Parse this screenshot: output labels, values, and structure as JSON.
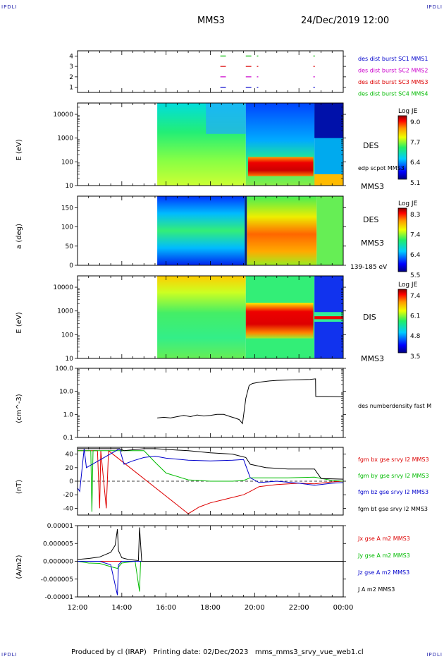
{
  "corner_labels": {
    "top_left": "IPDLI",
    "top_right": "IPDLI",
    "bottom_left": "IPDLI",
    "bottom_right": "IPDLI"
  },
  "header": {
    "spacecraft": "MMS3",
    "date": "24/Dec/2019 12:00"
  },
  "footer": {
    "produced_by": "Produced by cl (IRAP)",
    "printing_date": "Printing date: 02/Dec/2023",
    "file": "mms_mms3_srvy_vue_web1.cl"
  },
  "x_axis": {
    "tick_labels": [
      "12:00",
      "14:00",
      "16:00",
      "18:00",
      "20:00",
      "22:00",
      "00:00"
    ],
    "range_hours": [
      12,
      24
    ]
  },
  "colors": {
    "blue": "#0000cc",
    "magenta": "#cc00cc",
    "red": "#dd0000",
    "green": "#00bb00",
    "black": "#000000"
  },
  "chart_data": [
    {
      "type": "scatter",
      "id": "burst",
      "ylim": [
        0.5,
        4.5
      ],
      "tick_labels": [
        "1",
        "2",
        "3",
        "4"
      ],
      "legend": [
        {
          "label": "des dist burst SC1 MMS1",
          "color": "#0000cc",
          "y": 1
        },
        {
          "label": "des dist burst SC2 MMS2",
          "color": "#cc00cc",
          "y": 2
        },
        {
          "label": "des dist burst SC3 MMS3",
          "color": "#dd0000",
          "y": 3
        },
        {
          "label": "des dist burst SC4 MMS4",
          "color": "#00bb00",
          "y": 4
        }
      ],
      "intervals_hours": [
        [
          18.45,
          18.7
        ],
        [
          19.6,
          19.85
        ],
        [
          20.1,
          20.15
        ],
        [
          22.65,
          22.72
        ]
      ]
    },
    {
      "type": "heatmap",
      "id": "des_energy",
      "ylabel": "E (eV)",
      "scale": "log",
      "ylim": [
        10,
        30000
      ],
      "tick_labels": [
        "10",
        "100",
        "1000",
        "10000"
      ],
      "side_labels": [
        "DES",
        "MMS3"
      ],
      "overlay_label": "edp scpot MMS3",
      "colorbar": {
        "title": "Log JE",
        "ticks": [
          "9.0",
          "7.7",
          "6.4",
          "5.1"
        ],
        "range": [
          5.1,
          9.0
        ]
      },
      "data_start_hours": 15.6
    },
    {
      "type": "heatmap",
      "id": "des_pitch",
      "ylabel": "a (deg)",
      "ylim": [
        0,
        180
      ],
      "tick_labels": [
        "0",
        "50",
        "100",
        "150"
      ],
      "side_labels": [
        "DES",
        "MMS3",
        "139-185 eV"
      ],
      "colorbar": {
        "title": "Log JE",
        "ticks": [
          "8.3",
          "7.4",
          "6.4",
          "5.5"
        ],
        "range": [
          5.5,
          8.3
        ]
      },
      "data_start_hours": 15.6
    },
    {
      "type": "heatmap",
      "id": "dis_energy",
      "ylabel": "E (eV)",
      "scale": "log",
      "ylim": [
        10,
        30000
      ],
      "tick_labels": [
        "10",
        "100",
        "1000",
        "10000"
      ],
      "side_labels": [
        "DIS",
        "MMS3"
      ],
      "colorbar": {
        "title": "Log JE",
        "ticks": [
          "7.4",
          "6.1",
          "4.8",
          "3.5"
        ],
        "range": [
          3.5,
          7.4
        ]
      },
      "data_start_hours": 15.6
    },
    {
      "type": "line",
      "id": "density",
      "ylabel": "(cm^-3)",
      "scale": "log",
      "ylim": [
        0.1,
        100
      ],
      "tick_labels": [
        "0.1",
        "1.0",
        "10.0",
        "100.0"
      ],
      "series": [
        {
          "name": "des numberdensity fast M",
          "color": "#000000",
          "x": [
            15.6,
            15.9,
            16.2,
            16.5,
            16.8,
            17.1,
            17.4,
            17.7,
            18.0,
            18.3,
            18.6,
            18.9,
            19.1,
            19.3,
            19.45,
            19.6,
            19.75,
            19.9,
            20.2,
            20.6,
            21.0,
            21.5,
            22.0,
            22.5,
            22.75,
            22.76,
            23.2,
            24.0
          ],
          "y": [
            0.7,
            0.75,
            0.7,
            0.8,
            0.9,
            0.8,
            0.95,
            0.85,
            0.9,
            1.0,
            1.0,
            0.8,
            0.7,
            0.6,
            0.4,
            5,
            18,
            22,
            25,
            28,
            30,
            31,
            32,
            33,
            35,
            6,
            6,
            5.8
          ]
        }
      ]
    },
    {
      "type": "line",
      "id": "fgm",
      "ylabel": "(nT)",
      "ylim": [
        -50,
        50
      ],
      "tick_labels": [
        "-40",
        "-20",
        "0",
        "20",
        "40"
      ],
      "series": [
        {
          "name": "fgm bx gse srvy l2 MMS3",
          "color": "#dd0000",
          "x": [
            12.0,
            12.9,
            13.0,
            13.05,
            13.3,
            13.4,
            17.0,
            17.5,
            18.0,
            18.5,
            19.0,
            19.5,
            19.8,
            20.2,
            21.0,
            22.0,
            22.7,
            23.5,
            24.0
          ],
          "y": [
            45,
            45,
            -40,
            45,
            -40,
            45,
            -48,
            -38,
            -32,
            -28,
            -24,
            -20,
            -15,
            -8,
            -5,
            -3,
            -4,
            -1,
            0
          ]
        },
        {
          "name": "fgm by gse srvy l2 MMS3",
          "color": "#00bb00",
          "x": [
            12.0,
            12.6,
            12.65,
            12.7,
            15.0,
            15.5,
            16.0,
            17.0,
            18.0,
            19.0,
            19.5,
            19.8,
            20.5,
            21.5,
            22.7,
            23.5,
            24.0
          ],
          "y": [
            45,
            45,
            -45,
            45,
            45,
            28,
            12,
            2,
            0,
            0,
            1,
            5,
            5,
            5,
            6,
            1,
            0
          ]
        },
        {
          "name": "fgm bz gse srvy l2 MMS3",
          "color": "#0000cc",
          "x": [
            12.0,
            12.1,
            12.3,
            12.4,
            13.9,
            14.1,
            14.5,
            15.0,
            15.5,
            16.0,
            17.0,
            18.0,
            19.0,
            19.5,
            19.8,
            20.2,
            21.0,
            22.0,
            22.7,
            23.5,
            24.0
          ],
          "y": [
            -10,
            -15,
            48,
            20,
            48,
            25,
            30,
            35,
            37,
            34,
            31,
            30,
            31,
            32,
            5,
            -2,
            0,
            -3,
            -6,
            -3,
            -2
          ]
        },
        {
          "name": "fgm bt gse srvy l2 MMS3",
          "color": "#000000",
          "x": [
            12.0,
            12.3,
            13.9,
            14.1,
            15.0,
            15.5,
            16.0,
            17.0,
            18.0,
            19.0,
            19.6,
            19.8,
            20.5,
            21.5,
            22.7,
            23.0,
            24.0
          ],
          "y": [
            48,
            48,
            48,
            45,
            48,
            48,
            47,
            45,
            42,
            40,
            35,
            25,
            20,
            18,
            18,
            4,
            3
          ]
        }
      ],
      "zero_line": 0
    },
    {
      "type": "line",
      "id": "current",
      "ylabel": "(A/m2)",
      "ylim": [
        -1e-05,
        1e-05
      ],
      "tick_labels": [
        "-0.00001",
        "-0.000005",
        "0.000000",
        "0.000005",
        "0.00001"
      ],
      "series": [
        {
          "name": "Jx gse A m2 MMS3",
          "color": "#dd0000",
          "x": [
            12,
            24
          ],
          "y": [
            0,
            0
          ]
        },
        {
          "name": "Jy gse A m2 MMS3",
          "color": "#00bb00",
          "x": [
            12.0,
            12.5,
            13.0,
            13.5,
            13.8,
            14.0,
            14.6,
            14.8,
            14.85,
            15.2,
            24.0
          ],
          "y": [
            0,
            -5e-07,
            -6e-07,
            -1.5e-06,
            -2e-06,
            -5e-07,
            0,
            -8.5e-06,
            0,
            0,
            0
          ]
        },
        {
          "name": "Jz gse A m2 MMS3",
          "color": "#0000cc",
          "x": [
            12.0,
            13.0,
            13.5,
            13.8,
            13.85,
            14.0,
            14.5,
            24.0
          ],
          "y": [
            0,
            0,
            -1e-06,
            -9.5e-06,
            -1e-06,
            0,
            0,
            0
          ]
        },
        {
          "name": "J A m2 MMS3",
          "color": "#000000",
          "x": [
            12.0,
            12.5,
            13.0,
            13.3,
            13.5,
            13.7,
            13.8,
            13.85,
            14.0,
            14.3,
            14.75,
            14.8,
            14.9,
            24.0
          ],
          "y": [
            5e-07,
            8e-07,
            1.2e-06,
            2e-06,
            2.5e-06,
            4.5e-06,
            9e-06,
            3e-06,
            1e-06,
            5e-07,
            2e-07,
            9.5e-06,
            0,
            0
          ]
        }
      ],
      "zero_line": 0
    }
  ]
}
